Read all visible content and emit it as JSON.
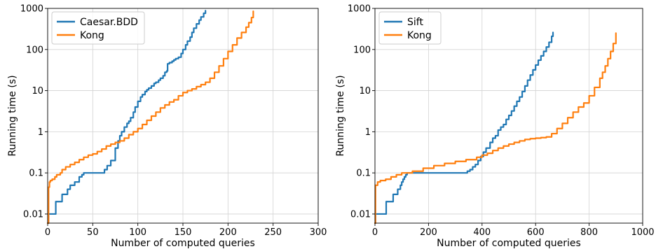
{
  "chart_data": [
    {
      "type": "line",
      "xlabel": "Number of computed queries",
      "ylabel": "Running time (s)",
      "xlim": [
        0,
        300
      ],
      "ylim": [
        0.006,
        1000
      ],
      "yscale": "log",
      "grid": true,
      "legend_position": "top-left",
      "x_ticks": [
        0,
        50,
        100,
        150,
        200,
        250,
        300
      ],
      "x_tick_labels": [
        "0",
        "50",
        "100",
        "150",
        "200",
        "250",
        "300"
      ],
      "y_ticks": [
        0.01,
        0.1,
        1,
        10,
        100,
        1000
      ],
      "y_tick_labels": [
        "0.01",
        "0.1",
        "1",
        "10",
        "100",
        "1000"
      ],
      "series": [
        {
          "name": "Caesar.BDD",
          "color": "#1f77b4",
          "x": [
            0,
            1,
            8,
            9,
            14,
            16,
            20,
            22,
            25,
            28,
            30,
            35,
            38,
            40,
            48,
            55,
            57,
            60,
            63,
            66,
            70,
            75,
            78,
            80,
            82,
            85,
            88,
            90,
            92,
            95,
            97,
            100,
            103,
            105,
            108,
            110,
            112,
            115,
            118,
            120,
            123,
            125,
            128,
            130,
            132,
            133,
            135,
            138,
            140,
            142,
            145,
            148,
            150,
            153,
            155,
            158,
            160,
            162,
            165,
            168,
            170,
            173,
            175
          ],
          "y": [
            0.006,
            0.01,
            0.01,
            0.02,
            0.02,
            0.03,
            0.03,
            0.04,
            0.05,
            0.05,
            0.06,
            0.08,
            0.09,
            0.1,
            0.1,
            0.1,
            0.1,
            0.1,
            0.12,
            0.15,
            0.2,
            0.4,
            0.6,
            0.8,
            1.0,
            1.3,
            1.6,
            1.8,
            2.2,
            3.0,
            4.0,
            5.5,
            7.0,
            8.0,
            9.5,
            10.5,
            11.5,
            13.0,
            15.0,
            16.0,
            18.0,
            20.0,
            23.0,
            28.0,
            30.0,
            45.0,
            48.0,
            52.0,
            56.0,
            60.0,
            65.0,
            80.0,
            100.0,
            130.0,
            160.0,
            200.0,
            260.0,
            330.0,
            420.0,
            520.0,
            620.0,
            760.0,
            880.0
          ]
        },
        {
          "name": "Kong",
          "color": "#ff7f0e",
          "x": [
            0,
            1,
            2,
            3,
            5,
            8,
            10,
            14,
            16,
            20,
            25,
            30,
            35,
            40,
            45,
            50,
            55,
            60,
            65,
            70,
            75,
            80,
            85,
            90,
            95,
            100,
            105,
            110,
            115,
            120,
            125,
            130,
            135,
            140,
            145,
            150,
            155,
            160,
            165,
            170,
            175,
            180,
            185,
            190,
            195,
            200,
            205,
            210,
            215,
            220,
            223,
            226,
            228
          ],
          "y": [
            0.006,
            0.045,
            0.06,
            0.065,
            0.07,
            0.08,
            0.09,
            0.1,
            0.12,
            0.14,
            0.16,
            0.18,
            0.21,
            0.24,
            0.27,
            0.29,
            0.33,
            0.38,
            0.45,
            0.5,
            0.55,
            0.6,
            0.7,
            0.85,
            1.0,
            1.2,
            1.5,
            1.9,
            2.4,
            3.0,
            3.8,
            4.5,
            5.3,
            6.0,
            7.5,
            9.0,
            10.0,
            11.0,
            12.5,
            14.0,
            16.0,
            20.0,
            28.0,
            40.0,
            60.0,
            90.0,
            130.0,
            190.0,
            260.0,
            350.0,
            450.0,
            600.0,
            850.0
          ]
        }
      ]
    },
    {
      "type": "line",
      "xlabel": "Number of computed queries",
      "ylabel": "Running time (s)",
      "xlim": [
        0,
        1000
      ],
      "ylim": [
        0.006,
        1000
      ],
      "yscale": "log",
      "grid": true,
      "legend_position": "top-left",
      "x_ticks": [
        0,
        200,
        400,
        600,
        800,
        1000
      ],
      "x_tick_labels": [
        "0",
        "200",
        "400",
        "600",
        "800",
        "1000"
      ],
      "y_ticks": [
        0.01,
        0.1,
        1,
        10,
        100,
        1000
      ],
      "y_tick_labels": [
        "0.01",
        "0.1",
        "1",
        "10",
        "100",
        "1000"
      ],
      "series": [
        {
          "name": "Sift",
          "color": "#1f77b4",
          "x": [
            0,
            2,
            40,
            42,
            65,
            68,
            80,
            85,
            95,
            100,
            105,
            110,
            115,
            120,
            330,
            340,
            345,
            355,
            365,
            375,
            385,
            395,
            405,
            415,
            430,
            440,
            450,
            460,
            470,
            480,
            490,
            500,
            510,
            520,
            530,
            540,
            550,
            560,
            570,
            580,
            590,
            600,
            610,
            620,
            630,
            640,
            650,
            660,
            665
          ],
          "y": [
            0.006,
            0.01,
            0.01,
            0.02,
            0.02,
            0.03,
            0.03,
            0.04,
            0.05,
            0.06,
            0.07,
            0.08,
            0.09,
            0.1,
            0.1,
            0.1,
            0.11,
            0.12,
            0.14,
            0.16,
            0.2,
            0.25,
            0.32,
            0.4,
            0.55,
            0.7,
            0.8,
            1.1,
            1.3,
            1.5,
            2.0,
            2.5,
            3.2,
            4.2,
            5.5,
            7.0,
            9.5,
            13.0,
            18.0,
            24.0,
            32.0,
            42.0,
            55.0,
            70.0,
            90.0,
            115.0,
            150.0,
            210.0,
            260.0
          ]
        },
        {
          "name": "Kong",
          "color": "#ff7f0e",
          "x": [
            0,
            2,
            10,
            20,
            40,
            60,
            80,
            100,
            140,
            180,
            220,
            260,
            300,
            340,
            380,
            400,
            420,
            440,
            460,
            480,
            500,
            520,
            540,
            560,
            580,
            600,
            620,
            640,
            660,
            680,
            700,
            720,
            740,
            760,
            780,
            800,
            820,
            840,
            850,
            860,
            870,
            880,
            890,
            900
          ],
          "y": [
            0.006,
            0.05,
            0.06,
            0.065,
            0.07,
            0.08,
            0.09,
            0.1,
            0.11,
            0.13,
            0.15,
            0.17,
            0.19,
            0.21,
            0.24,
            0.27,
            0.3,
            0.35,
            0.4,
            0.45,
            0.5,
            0.55,
            0.6,
            0.65,
            0.68,
            0.7,
            0.72,
            0.75,
            0.9,
            1.2,
            1.6,
            2.2,
            3.0,
            4.0,
            5.0,
            7.5,
            12.0,
            20.0,
            28.0,
            40.0,
            60.0,
            90.0,
            140.0,
            250.0
          ]
        }
      ]
    }
  ]
}
